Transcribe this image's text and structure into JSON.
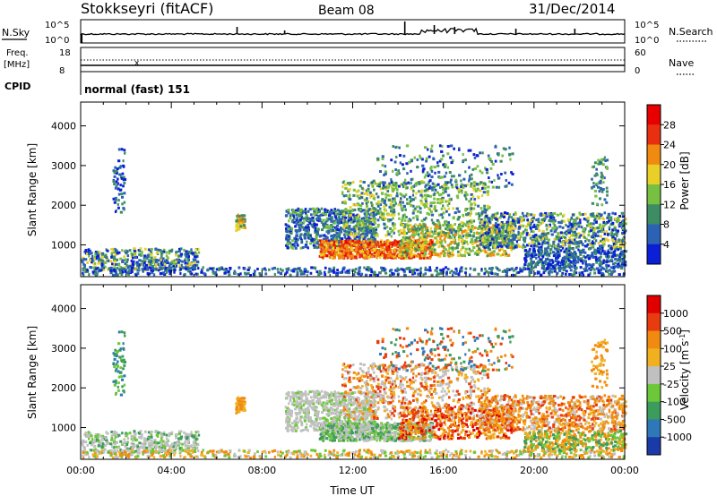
{
  "header": {
    "station": "Stokkseyri (fitACF)",
    "beam": "Beam 08",
    "date": "31/Dec/2014"
  },
  "status_panels": {
    "nsky_label": "N.Sky",
    "nsky_ticks": [
      "10^5",
      "10^0"
    ],
    "nsearch_label": "N.Search",
    "nsearch_ticks": [
      "10^5",
      "10^0"
    ],
    "freq_label_1": "Freq.",
    "freq_label_2": "[MHz]",
    "freq_ticks": [
      "18",
      "8"
    ],
    "nave_label": "Nave",
    "nave_ticks": [
      "60",
      "0"
    ],
    "cpid_label": "CPID",
    "cpid_text": "normal (fast) 151"
  },
  "chart_data": [
    {
      "type": "heatmap",
      "name": "power",
      "ylabel": "Slant Range [km]",
      "yticks": [
        "1000",
        "2000",
        "3000",
        "4000"
      ],
      "ylim": [
        200,
        4600
      ],
      "xlim": [
        0,
        24
      ],
      "colorbar_label": "Power [dB]",
      "colorbar_ticks": [
        "4",
        "8",
        "12",
        "16",
        "20",
        "24",
        "28"
      ],
      "colors": [
        "#0a1fd6",
        "#2c62b4",
        "#3c8c64",
        "#78c042",
        "#e8d028",
        "#f08a10",
        "#e83010",
        "#e80000"
      ]
    },
    {
      "type": "heatmap",
      "name": "velocity",
      "ylabel": "Slant Range [km]",
      "yticks": [
        "1000",
        "2000",
        "3000",
        "4000"
      ],
      "ylim": [
        200,
        4600
      ],
      "xlim": [
        0,
        24
      ],
      "xticks": [
        "00:00",
        "04:00",
        "08:00",
        "12:00",
        "16:00",
        "20:00",
        "00:00"
      ],
      "xlabel": "Time UT",
      "colorbar_label": "Velocity [m s^-1]",
      "colorbar_ticks": [
        "1000",
        "500",
        "100",
        "25",
        "-25",
        "-100",
        "-500",
        "-1000"
      ],
      "colors": [
        "#1a3aa8",
        "#2e78b8",
        "#3c9c5c",
        "#6cc838",
        "#c0c0c0",
        "#f0b020",
        "#f08a10",
        "#e83c10",
        "#e00000"
      ]
    }
  ]
}
